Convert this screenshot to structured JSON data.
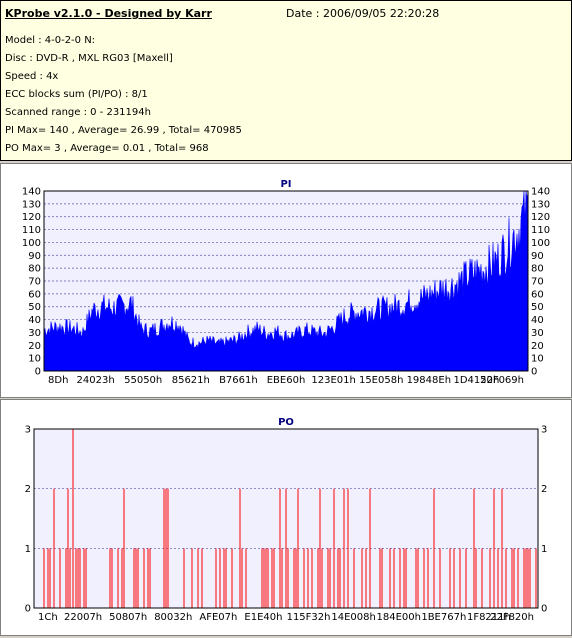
{
  "info": {
    "title": "KProbe v2.1.0 - Designed by Karr",
    "date": "Date : 2006/09/05 22:20:28",
    "model": "Model : 4-0-2-0 N:",
    "disc": "Disc : DVD-R , MXL RG03 [Maxell]",
    "speed": "Speed : 4x",
    "ecc": "ECC blocks sum (PI/PO) : 8/1",
    "range": "Scanned range : 0 - 231194h",
    "pi_stats": "PI Max= 140 , Average= 26.99 , Total= 470985",
    "po_stats": "PO Max= 3 , Average= 0.01 , Total= 968"
  },
  "colors": {
    "pi": "#0000ff",
    "po": "#ff0000",
    "plot_bg": "#f0f0ff",
    "grid": "#5555aa"
  },
  "chart_data": [
    {
      "type": "area",
      "title": "PI",
      "ylim": [
        0,
        140
      ],
      "yticks": [
        0,
        10,
        20,
        30,
        40,
        50,
        60,
        70,
        80,
        90,
        100,
        110,
        120,
        130,
        140
      ],
      "xticks": [
        "8Dh",
        "24023h",
        "55050h",
        "85621h",
        "B7661h",
        "EBE60h",
        "123E01h",
        "15E058h",
        "19848Eh",
        "1D4152h",
        "20F069h"
      ],
      "grid": true,
      "x": [
        0,
        0.03,
        0.06,
        0.08,
        0.1,
        0.12,
        0.14,
        0.16,
        0.18,
        0.2,
        0.22,
        0.24,
        0.26,
        0.28,
        0.3,
        0.32,
        0.34,
        0.36,
        0.38,
        0.4,
        0.42,
        0.44,
        0.46,
        0.48,
        0.5,
        0.52,
        0.54,
        0.56,
        0.58,
        0.6,
        0.62,
        0.64,
        0.66,
        0.68,
        0.7,
        0.72,
        0.74,
        0.76,
        0.78,
        0.8,
        0.82,
        0.84,
        0.86,
        0.88,
        0.9,
        0.92,
        0.94,
        0.95,
        0.96,
        0.97,
        0.98,
        0.99,
        1.0
      ],
      "values": [
        35,
        38,
        36,
        33,
        52,
        55,
        54,
        55,
        58,
        36,
        34,
        38,
        42,
        40,
        25,
        24,
        26,
        23,
        25,
        27,
        33,
        36,
        32,
        34,
        30,
        31,
        35,
        33,
        32,
        38,
        46,
        50,
        51,
        52,
        53,
        55,
        56,
        60,
        62,
        66,
        70,
        72,
        76,
        82,
        86,
        90,
        96,
        102,
        108,
        115,
        120,
        132,
        140
      ]
    },
    {
      "type": "bar",
      "title": "PO",
      "ylim": [
        0,
        3
      ],
      "yticks": [
        0,
        1,
        2,
        3
      ],
      "xticks": [
        "1Ch",
        "22007h",
        "50807h",
        "80032h",
        "AFE07h",
        "E1E40h",
        "115F32h",
        "14E008h",
        "184E00h",
        "1BE767h",
        "1F8211h",
        "22F820h"
      ],
      "grid": true,
      "max": 3
    }
  ]
}
